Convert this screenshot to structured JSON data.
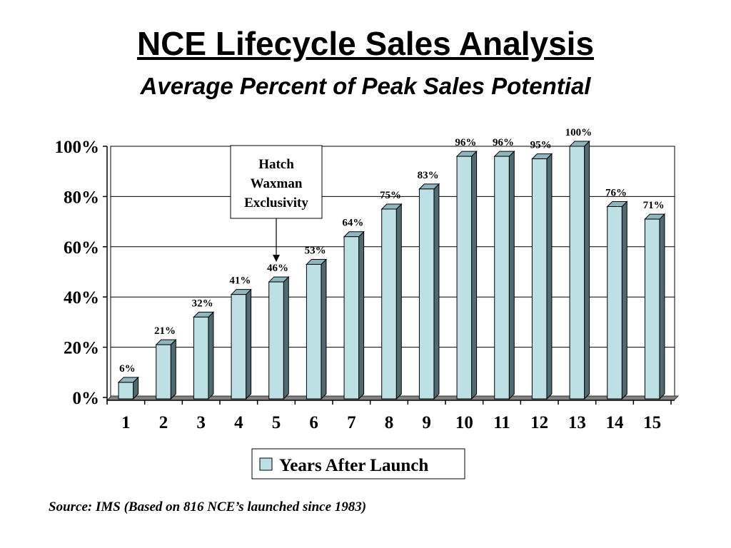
{
  "chart_data": {
    "type": "bar",
    "title": "NCE Lifecycle Sales Analysis",
    "subtitle": "Average Percent of Peak Sales Potential",
    "categories": [
      "1",
      "2",
      "3",
      "4",
      "5",
      "6",
      "7",
      "8",
      "9",
      "10",
      "11",
      "12",
      "13",
      "14",
      "15"
    ],
    "series": [
      {
        "name": "Years After Launch",
        "values": [
          6,
          21,
          32,
          41,
          46,
          53,
          64,
          75,
          83,
          96,
          96,
          95,
          100,
          76,
          71
        ]
      }
    ],
    "data_labels": [
      "6%",
      "21%",
      "32%",
      "41%",
      "46%",
      "53%",
      "64%",
      "75%",
      "83%",
      "96%",
      "96%",
      "95%",
      "100%",
      "76%",
      "71%"
    ],
    "ylim": [
      0,
      100
    ],
    "yticks": [
      0,
      20,
      40,
      60,
      80,
      100
    ],
    "ytick_labels": [
      "0%",
      "20%",
      "40%",
      "60%",
      "80%",
      "100%"
    ],
    "grid": true,
    "legend_position": "bottom-center",
    "annotation": {
      "lines": [
        "Hatch",
        "Waxman",
        "Exclusivity"
      ],
      "points_to_category": "5"
    },
    "colors": {
      "bar_front": "#bde0e4",
      "bar_side": "#4f6a70",
      "bar_top": "#8fb6bc",
      "floor": "#808080"
    },
    "source": "Source:  IMS (Based on 816 NCE’s launched since 1983)"
  }
}
